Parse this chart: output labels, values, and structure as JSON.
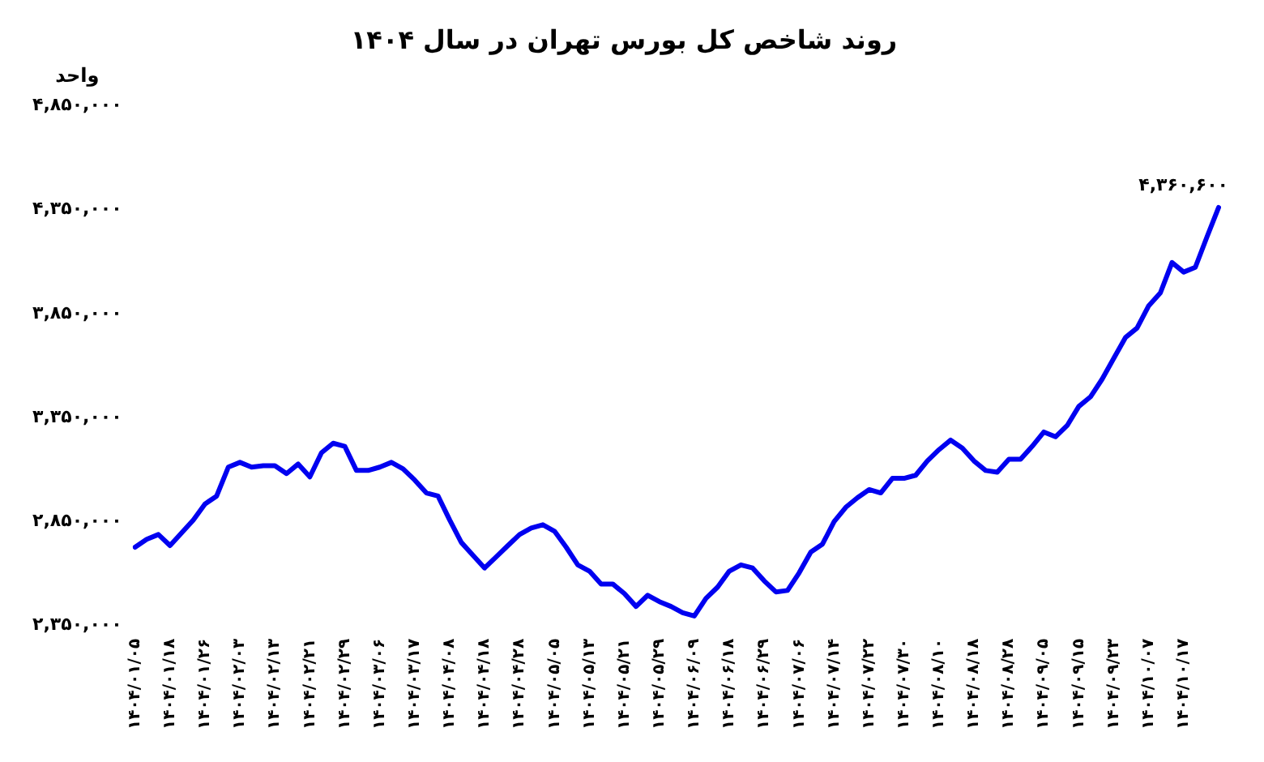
{
  "chart_data": {
    "type": "line",
    "title": "روند شاخص کل بورس تهران در سال ۱۴۰۴",
    "ylabel": "واحد",
    "categories": [
      "۱۴۰۴/۰۱/۰۵",
      null,
      null,
      "۱۴۰۴/۰۱/۱۸",
      null,
      null,
      "۱۴۰۴/۰۱/۲۶",
      null,
      null,
      "۱۴۰۴/۰۲/۰۳",
      null,
      null,
      "۱۴۰۴/۰۲/۱۳",
      null,
      null,
      "۱۴۰۴/۰۲/۲۱",
      null,
      null,
      "۱۴۰۴/۰۲/۲۹",
      null,
      null,
      "۱۴۰۴/۰۳/۰۶",
      null,
      null,
      "۱۴۰۴/۰۳/۱۷",
      null,
      null,
      "۱۴۰۴/۰۴/۰۸",
      null,
      null,
      "۱۴۰۴/۰۴/۱۸",
      null,
      null,
      "۱۴۰۴/۰۴/۲۸",
      null,
      null,
      "۱۴۰۴/۰۵/۰۵",
      null,
      null,
      "۱۴۰۴/۰۵/۱۳",
      null,
      null,
      "۱۴۰۴/۰۵/۲۱",
      null,
      null,
      "۱۴۰۴/۰۵/۲۹",
      null,
      null,
      "۱۴۰۴/۰۶/۰۹",
      null,
      null,
      "۱۴۰۴/۰۶/۱۸",
      null,
      null,
      "۱۴۰۴/۰۶/۲۹",
      null,
      null,
      "۱۴۰۴/۰۷/۰۶",
      null,
      null,
      "۱۴۰۴/۰۷/۱۴",
      null,
      null,
      "۱۴۰۴/۰۷/۲۲",
      null,
      null,
      "۱۴۰۴/۰۷/۳۰",
      null,
      null,
      "۱۴۰۴/۰۸/۱۰",
      null,
      null,
      "۱۴۰۴/۰۸/۱۸",
      null,
      null,
      "۱۴۰۴/۰۸/۲۸",
      null,
      null,
      "۱۴۰۴/۰۹/۰۵",
      null,
      null,
      "۱۴۰۴/۰۹/۱۵",
      null,
      null,
      "۱۴۰۴/۰۹/۲۳",
      null,
      null,
      "۱۴۰۴/۱۰/۰۷",
      null,
      null,
      "۱۴۰۴/۱۰/۱۷",
      null,
      null,
      null
    ],
    "series": [
      {
        "color": "#0000f0",
        "values": [
          2727000,
          2765000,
          2788000,
          2735000,
          2796000,
          2858000,
          2935000,
          2973000,
          3112000,
          3135000,
          3112000,
          3119000,
          3119000,
          3081000,
          3127000,
          3065000,
          3181000,
          3227000,
          3212000,
          3096000,
          3096000,
          3112000,
          3135000,
          3104000,
          3050000,
          2988000,
          2973000,
          2858000,
          2750000,
          2688000,
          2627000,
          2681000,
          2735000,
          2788000,
          2819000,
          2835000,
          2804000,
          2727000,
          2642000,
          2612000,
          2550000,
          2550000,
          2504000,
          2442000,
          2496000,
          2465000,
          2442000,
          2412000,
          2396000,
          2481000,
          2535000,
          2612000,
          2642000,
          2627000,
          2565000,
          2512000,
          2519000,
          2604000,
          2704000,
          2742000,
          2850000,
          2919000,
          2965000,
          3004000,
          2988000,
          3058000,
          3058000,
          3073000,
          3142000,
          3196000,
          3242000,
          3204000,
          3142000,
          3096000,
          3088000,
          3150000,
          3150000,
          3212000,
          3281000,
          3258000,
          3312000,
          3404000,
          3450000,
          3535000,
          3635000,
          3735000,
          3781000,
          3888000,
          3950000,
          4096000,
          4050000,
          4073000,
          4219000,
          4360600
        ],
        "value_labels": [
          null,
          null,
          null,
          null,
          null,
          null,
          null,
          null,
          null,
          null,
          null,
          null,
          null,
          null,
          null,
          null,
          null,
          null,
          null,
          null,
          null,
          null,
          null,
          null,
          null,
          null,
          null,
          null,
          null,
          null,
          null,
          null,
          null,
          null,
          null,
          null,
          null,
          null,
          null,
          null,
          null,
          null,
          null,
          null,
          null,
          null,
          null,
          null,
          null,
          null,
          null,
          null,
          null,
          null,
          null,
          null,
          null,
          null,
          null,
          null,
          null,
          null,
          null,
          null,
          null,
          null,
          null,
          null,
          null,
          null,
          null,
          null,
          null,
          null,
          null,
          null,
          null,
          null,
          null,
          null,
          null,
          null,
          null,
          null,
          null,
          null,
          null,
          null,
          null,
          null,
          null,
          null,
          null,
          "۴,۳۶۰,۶۰۰"
        ]
      }
    ],
    "ylim": [
      2350000,
      4850000
    ],
    "yticks": [
      {
        "value": 2350000,
        "label": "۲,۳۵۰,۰۰۰"
      },
      {
        "value": 2850000,
        "label": "۲,۸۵۰,۰۰۰"
      },
      {
        "value": 3350000,
        "label": "۳,۳۵۰,۰۰۰"
      },
      {
        "value": 3850000,
        "label": "۳,۸۵۰,۰۰۰"
      },
      {
        "value": 4350000,
        "label": "۴,۳۵۰,۰۰۰"
      },
      {
        "value": 4850000,
        "label": "۴,۸۵۰,۰۰۰"
      }
    ],
    "grid": false,
    "legend": false,
    "marker": "none",
    "line_style": "solid"
  }
}
